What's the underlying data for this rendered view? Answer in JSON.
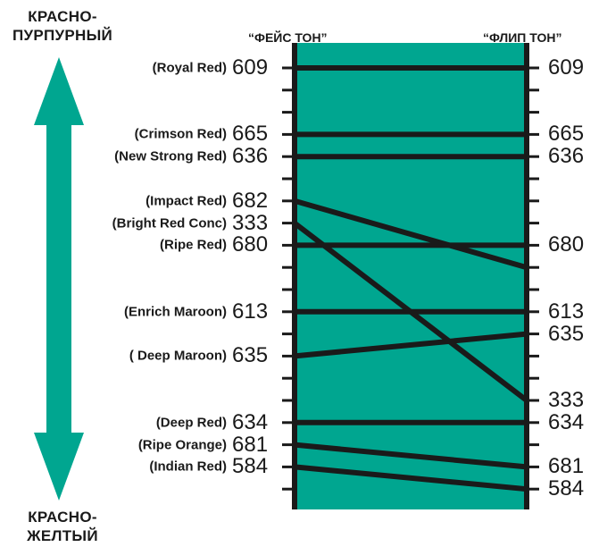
{
  "legend": {
    "top": [
      "КРАСНО-",
      "ПУРПУРНЫЙ"
    ],
    "bottom": [
      "КРАСНО-",
      "ЖЕЛТЫЙ"
    ]
  },
  "columns": {
    "face": "“ФЕЙС ТОН”",
    "flip": "“ФЛИП ТОН”"
  },
  "colors": {
    "panel": "#00a690",
    "arrow": "#00a690",
    "ink": "#1a1a1a"
  },
  "scale_steps": 20,
  "swatches": [
    {
      "name": "(Royal Red)",
      "code": "609",
      "face_step": 0,
      "flip_step": 0
    },
    {
      "name": "(Crimson Red)",
      "code": "665",
      "face_step": 3,
      "flip_step": 3
    },
    {
      "name": "(New Strong Red)",
      "code": "636",
      "face_step": 4,
      "flip_step": 4
    },
    {
      "name": "(Impact Red)",
      "code": "682",
      "face_step": 6,
      "flip_step": 9
    },
    {
      "name": "(Bright Red Conc)",
      "code": "333",
      "face_step": 7,
      "flip_step": 15
    },
    {
      "name": "(Ripe Red)",
      "code": "680",
      "face_step": 8,
      "flip_step": 8
    },
    {
      "name": "(Enrich Maroon)",
      "code": "613",
      "face_step": 11,
      "flip_step": 11
    },
    {
      "name": "( Deep Maroon)",
      "code": "635",
      "face_step": 13,
      "flip_step": 12
    },
    {
      "name": "(Deep Red)",
      "code": "634",
      "face_step": 16,
      "flip_step": 16
    },
    {
      "name": "(Ripe Orange)",
      "code": "681",
      "face_step": 17,
      "flip_step": 18
    },
    {
      "name": "(Indian Red)",
      "code": "584",
      "face_step": 18,
      "flip_step": 19
    }
  ],
  "flip_labels": [
    {
      "code": "609",
      "step": 0
    },
    {
      "code": "665",
      "step": 3
    },
    {
      "code": "636",
      "step": 4
    },
    {
      "code": "680",
      "step": 8
    },
    {
      "code": "613",
      "step": 11
    },
    {
      "code": "635",
      "step": 12
    },
    {
      "code": "333",
      "step": 15
    },
    {
      "code": "634",
      "step": 16
    },
    {
      "code": "681",
      "step": 18
    },
    {
      "code": "584",
      "step": 19
    }
  ]
}
